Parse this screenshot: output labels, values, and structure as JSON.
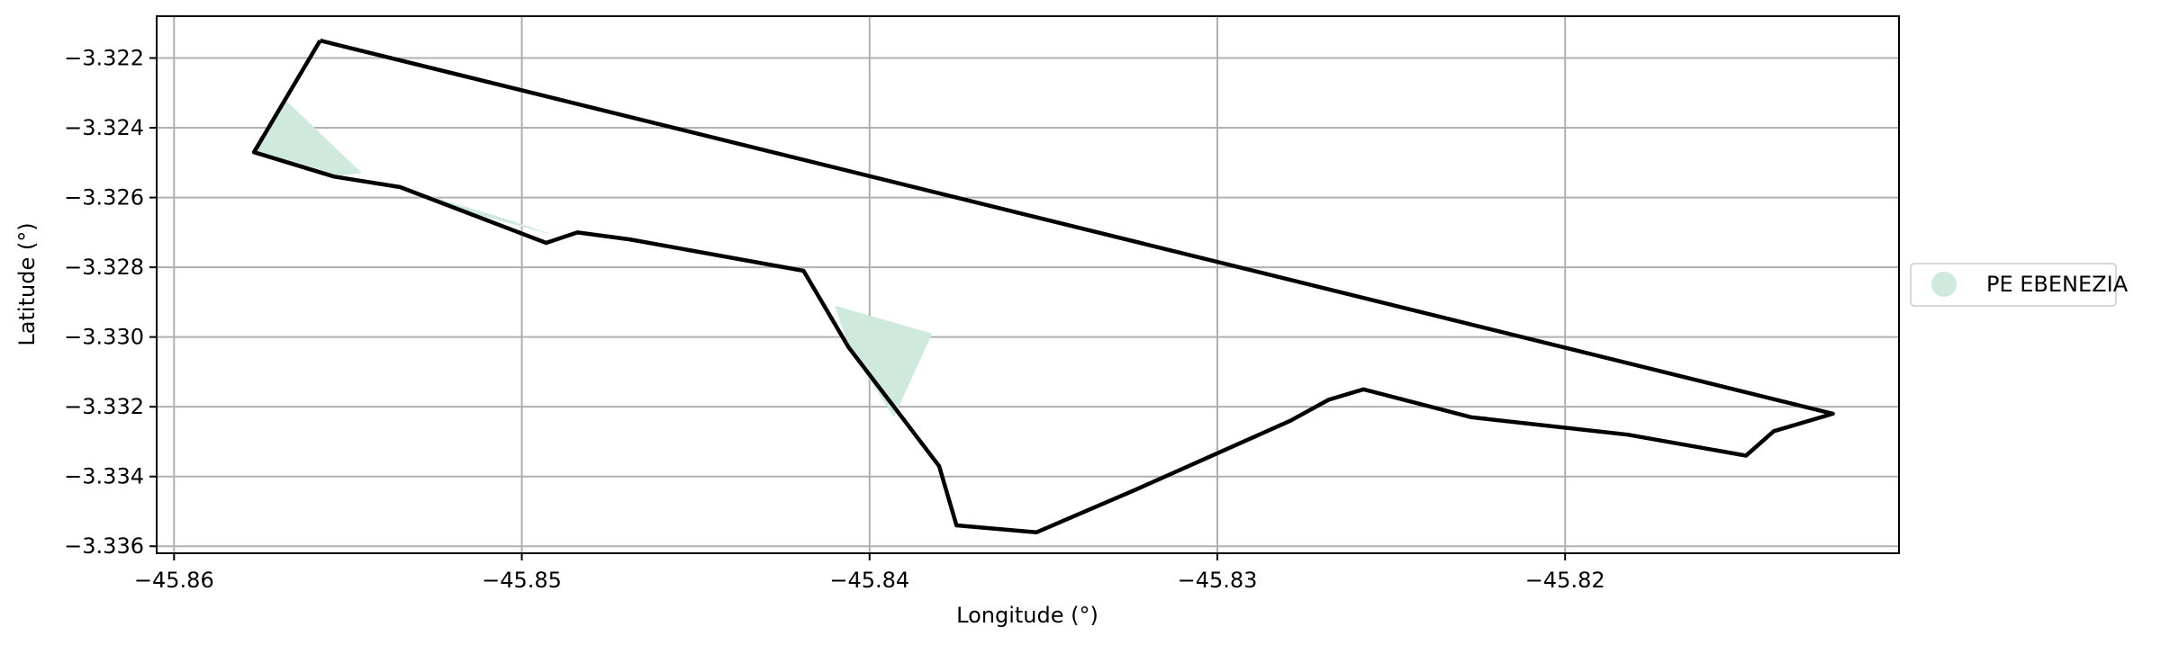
{
  "chart_data": {
    "type": "map",
    "xlabel": "Longitude (°)",
    "ylabel": "Latitude (°)",
    "xlim": [
      -45.8605,
      -45.8104
    ],
    "ylim": [
      -3.3362,
      -3.3208
    ],
    "x_ticks": [
      -45.86,
      -45.85,
      -45.84,
      -45.83,
      -45.82
    ],
    "x_tick_labels": [
      "−45.86",
      "−45.85",
      "−45.84",
      "−45.83",
      "−45.82"
    ],
    "y_ticks": [
      -3.322,
      -3.324,
      -3.326,
      -3.328,
      -3.33,
      -3.332,
      -3.334,
      -3.336
    ],
    "y_tick_labels": [
      "−3.322",
      "−3.324",
      "−3.326",
      "−3.328",
      "−3.330",
      "−3.332",
      "−3.334",
      "−3.336"
    ],
    "grid": true,
    "legend": {
      "position": "right",
      "entries": [
        {
          "label": "PE EBENEZIA",
          "color": "#cfeadc"
        }
      ]
    },
    "boundary": {
      "color": "#000000",
      "points": [
        [
          -45.8558,
          -3.3215
        ],
        [
          -45.8123,
          -3.3322
        ],
        [
          -45.814,
          -3.3327
        ],
        [
          -45.8148,
          -3.3334
        ],
        [
          -45.8182,
          -3.3328
        ],
        [
          -45.8227,
          -3.3323
        ],
        [
          -45.8258,
          -3.3315
        ],
        [
          -45.8268,
          -3.3318
        ],
        [
          -45.8279,
          -3.3324
        ],
        [
          -45.8324,
          -3.3344
        ],
        [
          -45.8352,
          -3.3356
        ],
        [
          -45.8375,
          -3.3354
        ],
        [
          -45.838,
          -3.3337
        ],
        [
          -45.8406,
          -3.3303
        ],
        [
          -45.8419,
          -3.3281
        ],
        [
          -45.8469,
          -3.3272
        ],
        [
          -45.8484,
          -3.327
        ],
        [
          -45.8493,
          -3.3273
        ],
        [
          -45.8535,
          -3.3257
        ],
        [
          -45.8554,
          -3.3254
        ],
        [
          -45.8577,
          -3.3247
        ],
        [
          -45.8558,
          -3.3215
        ]
      ]
    },
    "filled_regions": [
      {
        "name": "PE EBENEZIA",
        "color": "#cfeadc",
        "polygons": [
          [
            [
              -45.8568,
              -3.3232
            ],
            [
              -45.8577,
              -3.3247
            ],
            [
              -45.8554,
              -3.3254
            ],
            [
              -45.8546,
              -3.3253
            ]
          ],
          [
            [
              -45.8535,
              -3.3257
            ],
            [
              -45.852,
              -3.3263
            ],
            [
              -45.849,
              -3.3271
            ],
            [
              -45.8505,
              -3.3266
            ]
          ],
          [
            [
              -45.841,
              -3.3291
            ],
            [
              -45.8406,
              -3.3303
            ],
            [
              -45.8393,
              -3.3323
            ],
            [
              -45.8382,
              -3.3299
            ]
          ]
        ]
      }
    ]
  }
}
